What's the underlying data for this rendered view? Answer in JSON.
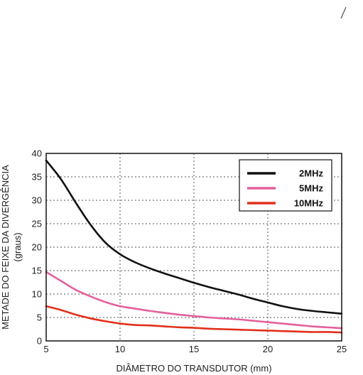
{
  "chart_data": {
    "type": "line",
    "xlabel": "DIÂMETRO DO TRANSDUTOR (mm)",
    "ylabel_line1": "METADE DO FEIXE DA DIVERGÊNCIA",
    "ylabel_line2": "(graus)",
    "xlim": [
      5,
      25
    ],
    "ylim": [
      0,
      40
    ],
    "x_ticks": [
      "5",
      "10",
      "15",
      "20",
      "25"
    ],
    "y_ticks": [
      "0",
      "5",
      "10",
      "15",
      "20",
      "25",
      "30",
      "35",
      "40"
    ],
    "grid": true,
    "legend_position": "top-right",
    "series": [
      {
        "name": "2MHz",
        "color": "#111111",
        "x": [
          5,
          6,
          7,
          8,
          9,
          10,
          11,
          12,
          13,
          14,
          15,
          16,
          17,
          18,
          19,
          20,
          21,
          22,
          23,
          24,
          25
        ],
        "y": [
          38.5,
          34.5,
          29.5,
          24.8,
          21.0,
          18.5,
          16.8,
          15.5,
          14.4,
          13.4,
          12.4,
          11.5,
          10.7,
          9.9,
          9.0,
          8.2,
          7.4,
          6.8,
          6.4,
          6.1,
          5.8
        ]
      },
      {
        "name": "5MHz",
        "color": "#e3609b",
        "x": [
          5,
          6,
          7,
          8,
          9,
          10,
          11,
          12,
          13,
          14,
          15,
          16,
          17,
          18,
          19,
          20,
          21,
          22,
          23,
          24,
          25
        ],
        "y": [
          14.7,
          12.8,
          10.9,
          9.5,
          8.3,
          7.4,
          6.9,
          6.4,
          6.0,
          5.6,
          5.3,
          5.0,
          4.8,
          4.6,
          4.3,
          4.0,
          3.7,
          3.4,
          3.1,
          2.9,
          2.7
        ]
      },
      {
        "name": "10MHz",
        "color": "#e2301b",
        "x": [
          5,
          6,
          7,
          8,
          9,
          10,
          11,
          12,
          13,
          14,
          15,
          16,
          17,
          18,
          19,
          20,
          21,
          22,
          23,
          24,
          25
        ],
        "y": [
          7.4,
          6.6,
          5.6,
          4.8,
          4.2,
          3.7,
          3.4,
          3.3,
          3.1,
          2.9,
          2.8,
          2.6,
          2.5,
          2.4,
          2.3,
          2.2,
          2.1,
          2.0,
          1.9,
          1.9,
          1.8
        ]
      }
    ]
  }
}
